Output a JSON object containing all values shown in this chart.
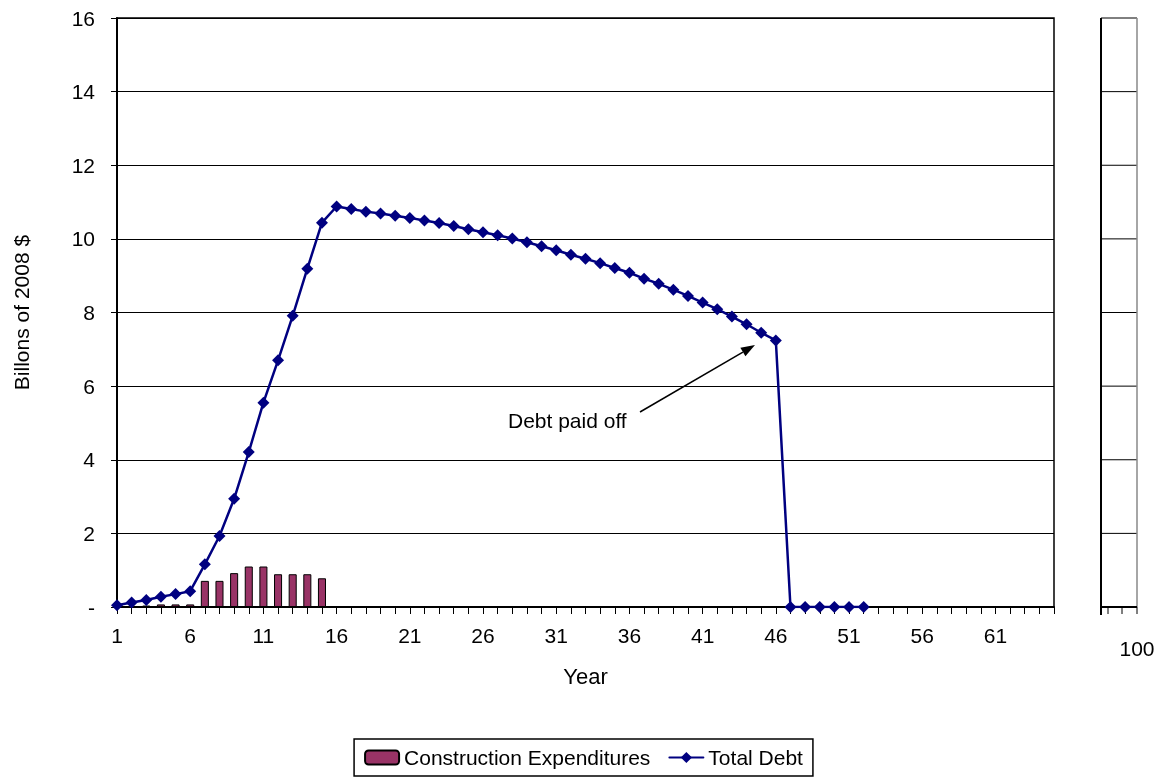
{
  "chart_data": {
    "type": "line",
    "xlabel": "Year",
    "ylabel": "Billons of 2008 $",
    "categories": [
      "1",
      null,
      null,
      null,
      null,
      "6",
      null,
      null,
      null,
      null,
      "11",
      null,
      null,
      null,
      null,
      "16",
      null,
      null,
      null,
      null,
      "21",
      null,
      null,
      null,
      null,
      "26",
      null,
      null,
      null,
      null,
      "31",
      null,
      null,
      null,
      null,
      "36",
      null,
      null,
      null,
      null,
      "41",
      null,
      null,
      null,
      null,
      "46",
      null,
      null,
      null,
      null,
      "51",
      null,
      null,
      null,
      null,
      "56",
      null,
      null,
      null,
      null,
      "61",
      null,
      null,
      null,
      null
    ],
    "series": [
      {
        "name": "Construction Expenditures",
        "type": "bar",
        "color": "#993366",
        "values": [
          null,
          null,
          0.04,
          0.07,
          0.07,
          0.07,
          0.71,
          0.71,
          0.92,
          1.1,
          1.1,
          0.89,
          0.89,
          0.89,
          0.78,
          null,
          null,
          null,
          null,
          null,
          null,
          null,
          null,
          null,
          null,
          null,
          null,
          null,
          null,
          null,
          null,
          null,
          null,
          null,
          null,
          null,
          null,
          null,
          null,
          null,
          null,
          null,
          null,
          null,
          null,
          null,
          null,
          null,
          null,
          null,
          null,
          null,
          null,
          null,
          null,
          null,
          null,
          null,
          null,
          null,
          null,
          null,
          null,
          null,
          null
        ]
      },
      {
        "name": "Total Debt",
        "color": "#000080",
        "values": [
          0.05,
          0.12,
          0.19,
          0.28,
          0.35,
          0.43,
          1.16,
          1.93,
          2.94,
          4.21,
          5.55,
          6.7,
          7.91,
          9.19,
          10.44,
          10.88,
          10.81,
          10.74,
          10.69,
          10.63,
          10.57,
          10.5,
          10.43,
          10.35,
          10.26,
          10.18,
          10.1,
          10.01,
          9.91,
          9.8,
          9.69,
          9.57,
          9.46,
          9.34,
          9.21,
          9.08,
          8.92,
          8.78,
          8.62,
          8.45,
          8.27,
          8.09,
          7.89,
          7.68,
          7.45,
          7.24,
          0,
          0,
          0,
          0,
          0,
          0,
          null,
          null,
          null,
          null,
          null,
          null,
          null,
          null,
          null,
          null,
          null,
          null,
          null
        ]
      }
    ],
    "ylim": [
      0,
      16
    ],
    "yticks": [
      {
        "value": 0,
        "label": "-"
      },
      2,
      4,
      6,
      8,
      10,
      12,
      14,
      16
    ],
    "grid": "y",
    "marker": "diamond",
    "legend": "bottom",
    "annotations": [
      "Debt paid off",
      "100"
    ]
  }
}
